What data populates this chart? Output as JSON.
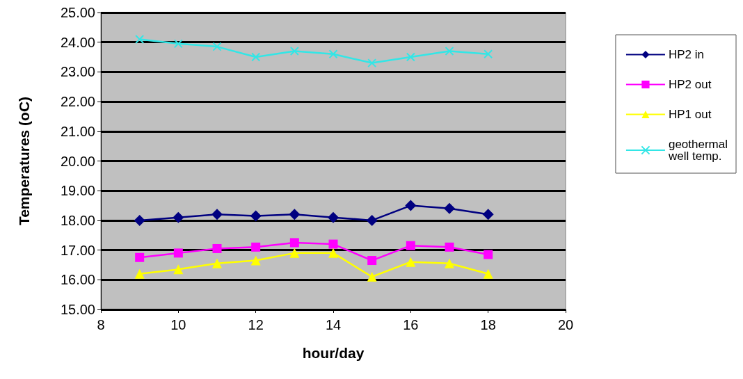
{
  "chart_data": {
    "type": "line",
    "xlabel": "hour/day",
    "ylabel": "Temperatures (oC)",
    "x": [
      9,
      10,
      11,
      12,
      13,
      14,
      15,
      16,
      17,
      18
    ],
    "series": [
      {
        "name": "HP2 in",
        "color": "#000080",
        "marker": "diamond",
        "values": [
          18.0,
          18.1,
          18.2,
          18.15,
          18.2,
          18.1,
          18.0,
          18.5,
          18.4,
          18.2
        ]
      },
      {
        "name": "HP2 out",
        "color": "#ff00ff",
        "marker": "square",
        "values": [
          16.75,
          16.9,
          17.05,
          17.1,
          17.25,
          17.2,
          16.65,
          17.15,
          17.1,
          16.85
        ]
      },
      {
        "name": "HP1 out",
        "color": "#ffff00",
        "marker": "triangle",
        "values": [
          16.2,
          16.35,
          16.55,
          16.65,
          16.9,
          16.9,
          16.1,
          16.6,
          16.55,
          16.2
        ]
      },
      {
        "name": "geothermal\nwell temp.",
        "color": "#33e6e6",
        "marker": "cross",
        "values": [
          24.1,
          23.95,
          23.85,
          23.5,
          23.7,
          23.6,
          23.3,
          23.5,
          23.7,
          23.6
        ]
      }
    ],
    "xlim": [
      8,
      20
    ],
    "xticks": [
      8,
      10,
      12,
      14,
      16,
      18,
      20
    ],
    "ylim": [
      15,
      25
    ],
    "yticks": [
      {
        "value": 15,
        "label": "15.00"
      },
      {
        "value": 16,
        "label": "16.00"
      },
      {
        "value": 17,
        "label": "17.00"
      },
      {
        "value": 18,
        "label": "18.00"
      },
      {
        "value": 19,
        "label": "19.00"
      },
      {
        "value": 20,
        "label": "20.00"
      },
      {
        "value": 21,
        "label": "21.00"
      },
      {
        "value": 22,
        "label": "22.00"
      },
      {
        "value": 23,
        "label": "23.00"
      },
      {
        "value": 24,
        "label": "24.00"
      },
      {
        "value": 25,
        "label": "25.00"
      }
    ],
    "grid": "y",
    "legend": "right",
    "line_style": "solid"
  }
}
